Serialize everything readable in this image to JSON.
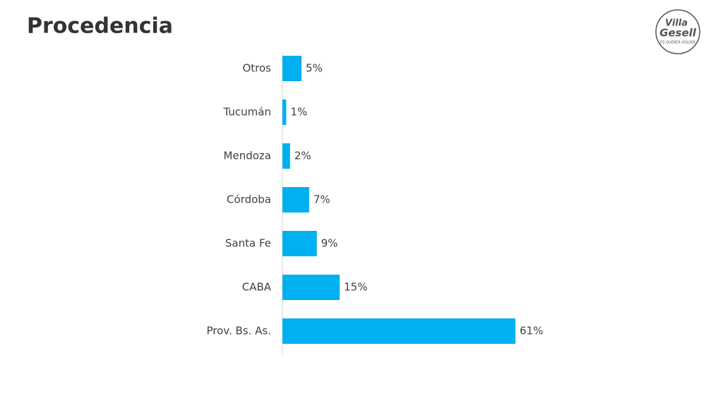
{
  "chart_data": {
    "type": "hbar",
    "title": "Procedencia",
    "categories": [
      "Otros",
      "Tucumán",
      "Mendoza",
      "Córdoba",
      "Santa Fe",
      "CABA",
      "Prov. Bs. As."
    ],
    "values": [
      5,
      1,
      2,
      7,
      9,
      15,
      61
    ],
    "value_labels": [
      "5%",
      "1%",
      "2%",
      "7%",
      "9%",
      "15%",
      "61%"
    ],
    "color": "#00b0f0"
  },
  "logo": {
    "line1": "Villa",
    "line2": "Gesell",
    "tagline": "ES QUERER VOLVER"
  }
}
